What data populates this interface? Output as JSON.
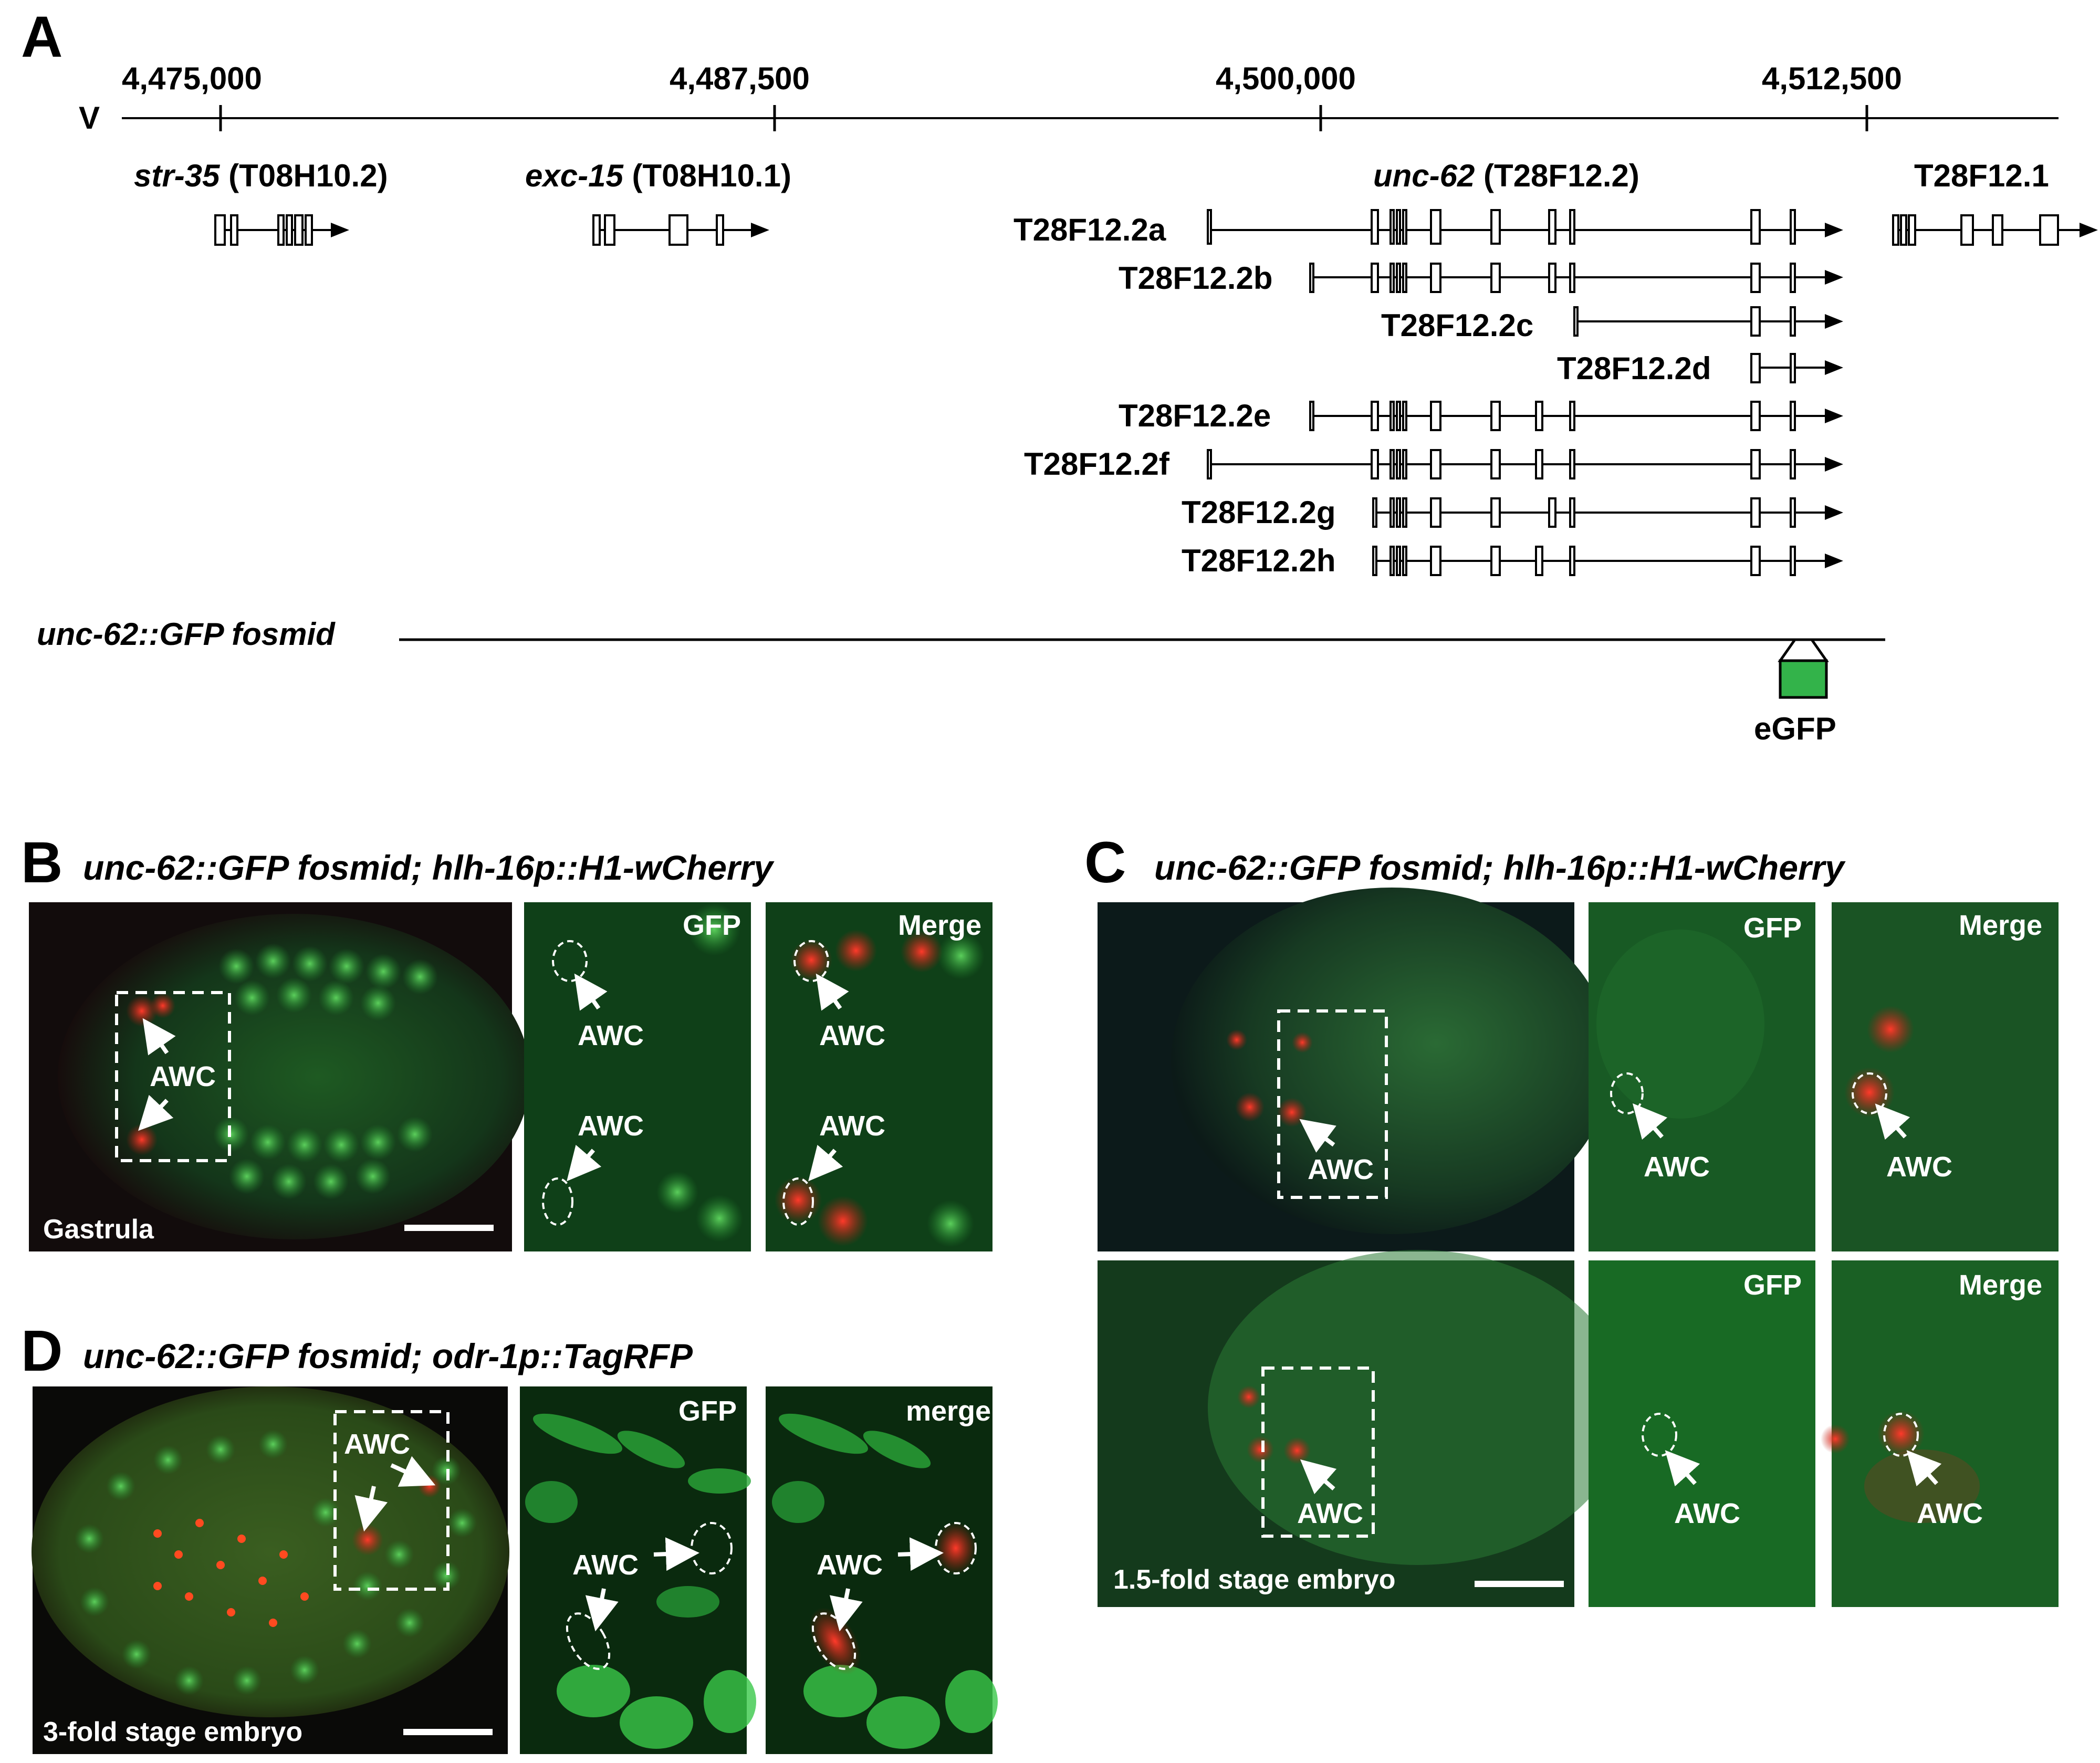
{
  "panels": {
    "A": {
      "letter": "A",
      "chromosome": "V",
      "ticks": [
        "4,475,000",
        "4,487,500",
        "4,500,000",
        "4,512,500"
      ],
      "genes": {
        "str35_italic": "str-35",
        "str35_id": " (T08H10.2)",
        "exc15_italic": "exc-15",
        "exc15_id": " (T08H10.1)",
        "unc62_italic": "unc-62",
        "unc62_id": " (T28F12.2)",
        "t28f12_1": "T28F12.1"
      },
      "isoforms": [
        "T28F12.2a",
        "T28F12.2b",
        "T28F12.2c",
        "T28F12.2d",
        "T28F12.2e",
        "T28F12.2f",
        "T28F12.2g",
        "T28F12.2h"
      ],
      "fosmid_label": "unc-62::GFP fosmid",
      "egfp_label": "eGFP",
      "egfp_color": "#33b34a"
    },
    "B": {
      "letter": "B",
      "title": "unc-62::GFP fosmid; hlh-16p::H1-wCherry",
      "stage": "Gastrula",
      "gfp_label": "GFP",
      "merge_label": "Merge",
      "awc": "AWC"
    },
    "C": {
      "letter": "C",
      "title": "unc-62::GFP fosmid; hlh-16p::H1-wCherry",
      "stage": "1.5-fold stage embryo",
      "gfp_label": "GFP",
      "merge_label": "Merge",
      "awc": "AWC"
    },
    "D": {
      "letter": "D",
      "title": "unc-62::GFP fosmid; odr-1p::TagRFP",
      "stage": "3-fold stage embryo",
      "gfp_label": "GFP",
      "merge_label": "merge",
      "awc": "AWC"
    }
  }
}
